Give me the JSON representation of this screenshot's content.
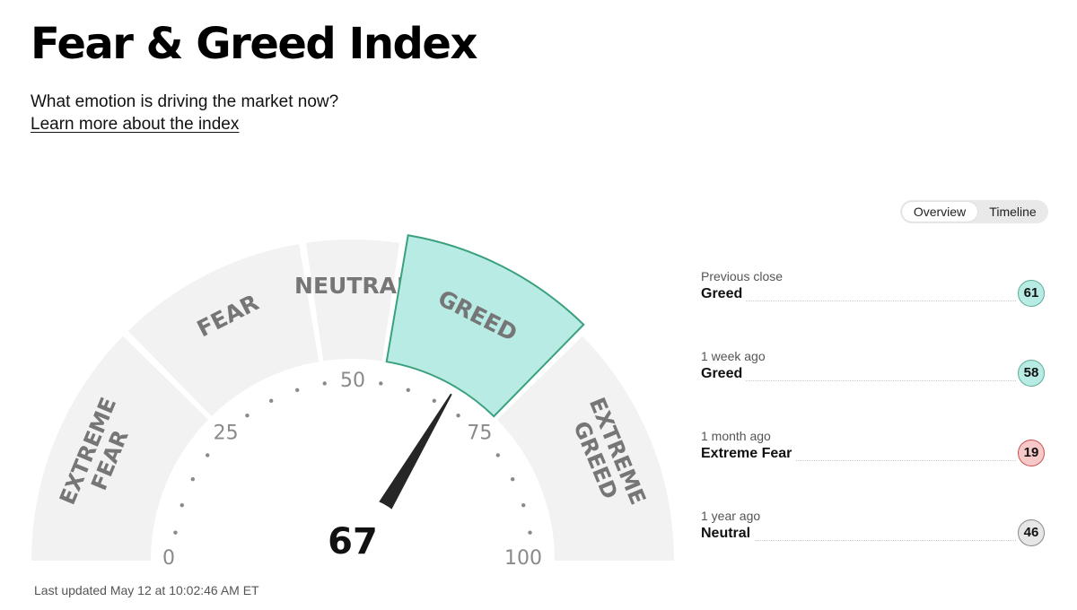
{
  "page": {
    "title": "Fear & Greed Index",
    "subtitle": "What emotion is driving the market now?",
    "learn_link": "Learn more about the index",
    "last_updated": "Last updated May 12 at 10:02:46 AM ET"
  },
  "view_toggle": {
    "options": [
      "Overview",
      "Timeline"
    ],
    "selected": "Overview"
  },
  "gauge": {
    "value": 67,
    "value_text": "67",
    "segments": [
      {
        "label_lines": [
          "EXTREME",
          "FEAR"
        ],
        "range": [
          0,
          25
        ]
      },
      {
        "label_lines": [
          "FEAR"
        ],
        "range": [
          25,
          45
        ]
      },
      {
        "label_lines": [
          "NEUTRAL"
        ],
        "range": [
          45,
          55
        ]
      },
      {
        "label_lines": [
          "GREED"
        ],
        "range": [
          55,
          75
        ]
      },
      {
        "label_lines": [
          "EXTREME",
          "GREED"
        ],
        "range": [
          75,
          100
        ]
      }
    ],
    "active_segment": 3,
    "scale_labels": [
      "0",
      "25",
      "50",
      "75",
      "100"
    ],
    "colors": {
      "segment": "#f2f2f2",
      "active_fill": "#b8ebe4",
      "active_stroke": "#3aa17e",
      "needle": "#262626"
    }
  },
  "history": [
    {
      "period": "Previous close",
      "rating": "Greed",
      "value": "61",
      "status": "greed"
    },
    {
      "period": "1 week ago",
      "rating": "Greed",
      "value": "58",
      "status": "greed"
    },
    {
      "period": "1 month ago",
      "rating": "Extreme Fear",
      "value": "19",
      "status": "fear"
    },
    {
      "period": "1 year ago",
      "rating": "Neutral",
      "value": "46",
      "status": "neutral"
    }
  ]
}
